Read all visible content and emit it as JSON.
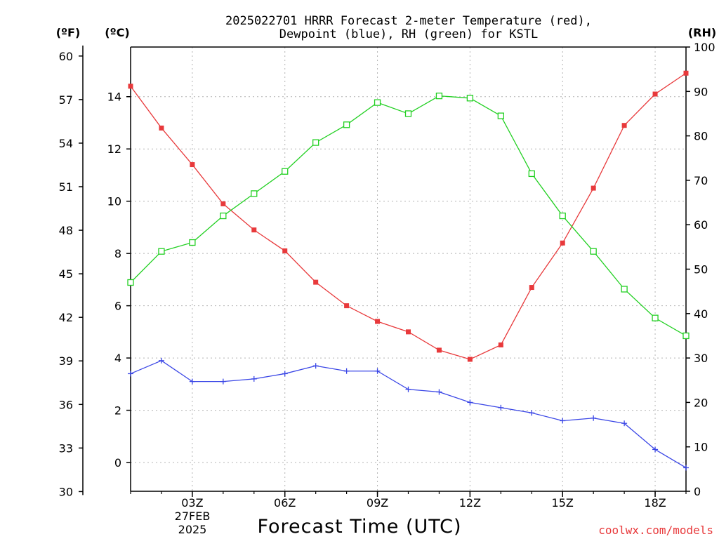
{
  "title_line1": "2025022701 HRRR Forecast 2-meter Temperature (red),",
  "title_line2": "Dewpoint (blue), RH (green) for KSTL",
  "unit_f": "(ºF)",
  "unit_c": "(ºC)",
  "unit_rh": "(RH)",
  "xlabel": "Forecast Time (UTC)",
  "date_line1": "27FEB",
  "date_line2": "2025",
  "source": "coolwx.com/models",
  "chart_data": {
    "type": "line",
    "x_hours": [
      1,
      2,
      3,
      4,
      5,
      6,
      7,
      8,
      9,
      10,
      11,
      12,
      13,
      14,
      15,
      16,
      17,
      18,
      19
    ],
    "x_tick_hours": [
      3,
      6,
      9,
      12,
      15,
      18
    ],
    "x_tick_labels": [
      "03Z",
      "06Z",
      "09Z",
      "12Z",
      "15Z",
      "18Z"
    ],
    "xlim": [
      1,
      19
    ],
    "left_axis_f": {
      "label": "(ºF)",
      "ticks": [
        30,
        33,
        36,
        39,
        42,
        45,
        48,
        51,
        54,
        57,
        60
      ]
    },
    "celsius_axis": {
      "label": "(ºC)",
      "ticks": [
        0,
        2,
        4,
        6,
        8,
        10,
        12,
        14
      ],
      "ylim": [
        -1.1,
        15.9
      ]
    },
    "rh_axis": {
      "label": "(RH)",
      "ticks": [
        0,
        10,
        20,
        30,
        40,
        50,
        60,
        70,
        80,
        90,
        100
      ],
      "ylim": [
        0,
        100
      ]
    },
    "grid": true,
    "series": [
      {
        "name": "Temperature",
        "axis": "celsius",
        "color": "#e8393b",
        "marker": "filled-square",
        "values": [
          14.4,
          12.8,
          11.4,
          9.9,
          8.9,
          8.1,
          6.9,
          6.0,
          5.4,
          5.0,
          4.3,
          3.95,
          4.5,
          6.7,
          8.4,
          10.5,
          12.9,
          14.1,
          14.9
        ]
      },
      {
        "name": "Dewpoint",
        "axis": "celsius",
        "color": "#3a46e6",
        "marker": "plus",
        "values": [
          3.4,
          3.9,
          3.1,
          3.1,
          3.2,
          3.4,
          3.7,
          3.5,
          3.5,
          2.8,
          2.7,
          2.3,
          2.1,
          1.9,
          1.6,
          1.7,
          1.5,
          0.5,
          -0.2
        ]
      },
      {
        "name": "RH",
        "axis": "rh",
        "color": "#22d022",
        "marker": "open-square",
        "values": [
          47,
          54,
          56,
          62,
          67,
          72,
          78.5,
          82.5,
          87.5,
          85,
          89,
          88.5,
          84.5,
          71.5,
          62,
          54,
          45.5,
          39,
          35
        ]
      }
    ]
  }
}
